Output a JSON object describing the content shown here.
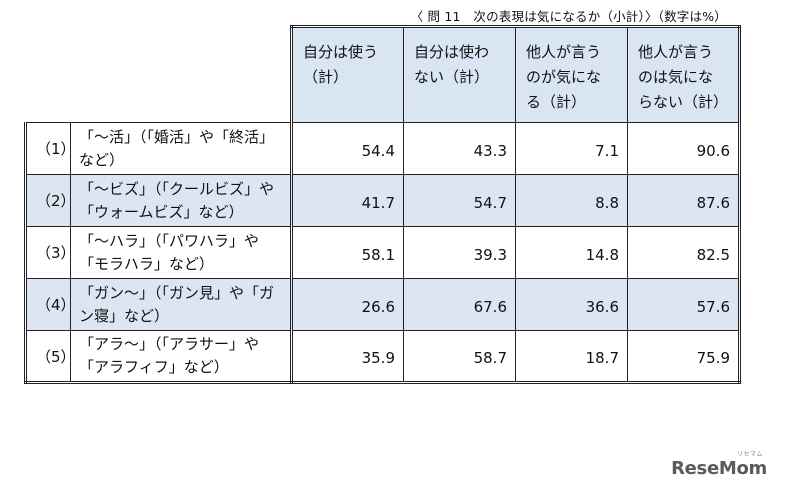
{
  "caption": "〈 問 11　次の表現は気になるか（小計）〉（数字は%）",
  "columns": [
    {
      "line1": "自分は使う",
      "line2": "（計）"
    },
    {
      "line1": "自分は使わ",
      "line2": "ない（計）"
    },
    {
      "line1": "他人が言う",
      "line2": "のが気にな",
      "line3": "る（計）"
    },
    {
      "line1": "他人が言う",
      "line2": "のは気にな",
      "line3": "らない（計）"
    }
  ],
  "rows": [
    {
      "index": "（1）",
      "label_line1": "「～活」（「婚活」や「終活」",
      "label_line2": "など）",
      "values": [
        "54.4",
        "43.3",
        "7.1",
        "90.6"
      ]
    },
    {
      "index": "（2）",
      "label_line1": "「～ビズ」（「クールビズ」や",
      "label_line2": "「ウォームビズ」など）",
      "values": [
        "41.7",
        "54.7",
        "8.8",
        "87.6"
      ]
    },
    {
      "index": "（3）",
      "label_line1": "「～ハラ」（「パワハラ」や",
      "label_line2": "「モラハラ」など）",
      "values": [
        "58.1",
        "39.3",
        "14.8",
        "82.5"
      ]
    },
    {
      "index": "（4）",
      "label_line1": "「ガン～」（「ガン見」や「ガ",
      "label_line2": "ン寝」など）",
      "values": [
        "26.6",
        "67.6",
        "36.6",
        "57.6"
      ]
    },
    {
      "index": "（5）",
      "label_line1": "「アラ～」（「アラサー」や",
      "label_line2": "「アラフィフ」など）",
      "values": [
        "35.9",
        "58.7",
        "18.7",
        "75.9"
      ]
    }
  ],
  "logo": {
    "text": "ReseMom",
    "sub": "リセマム"
  },
  "colors": {
    "header_bg": "#d9e5f3",
    "shaded_row_bg": "#dce6f2",
    "border": "#222222"
  }
}
